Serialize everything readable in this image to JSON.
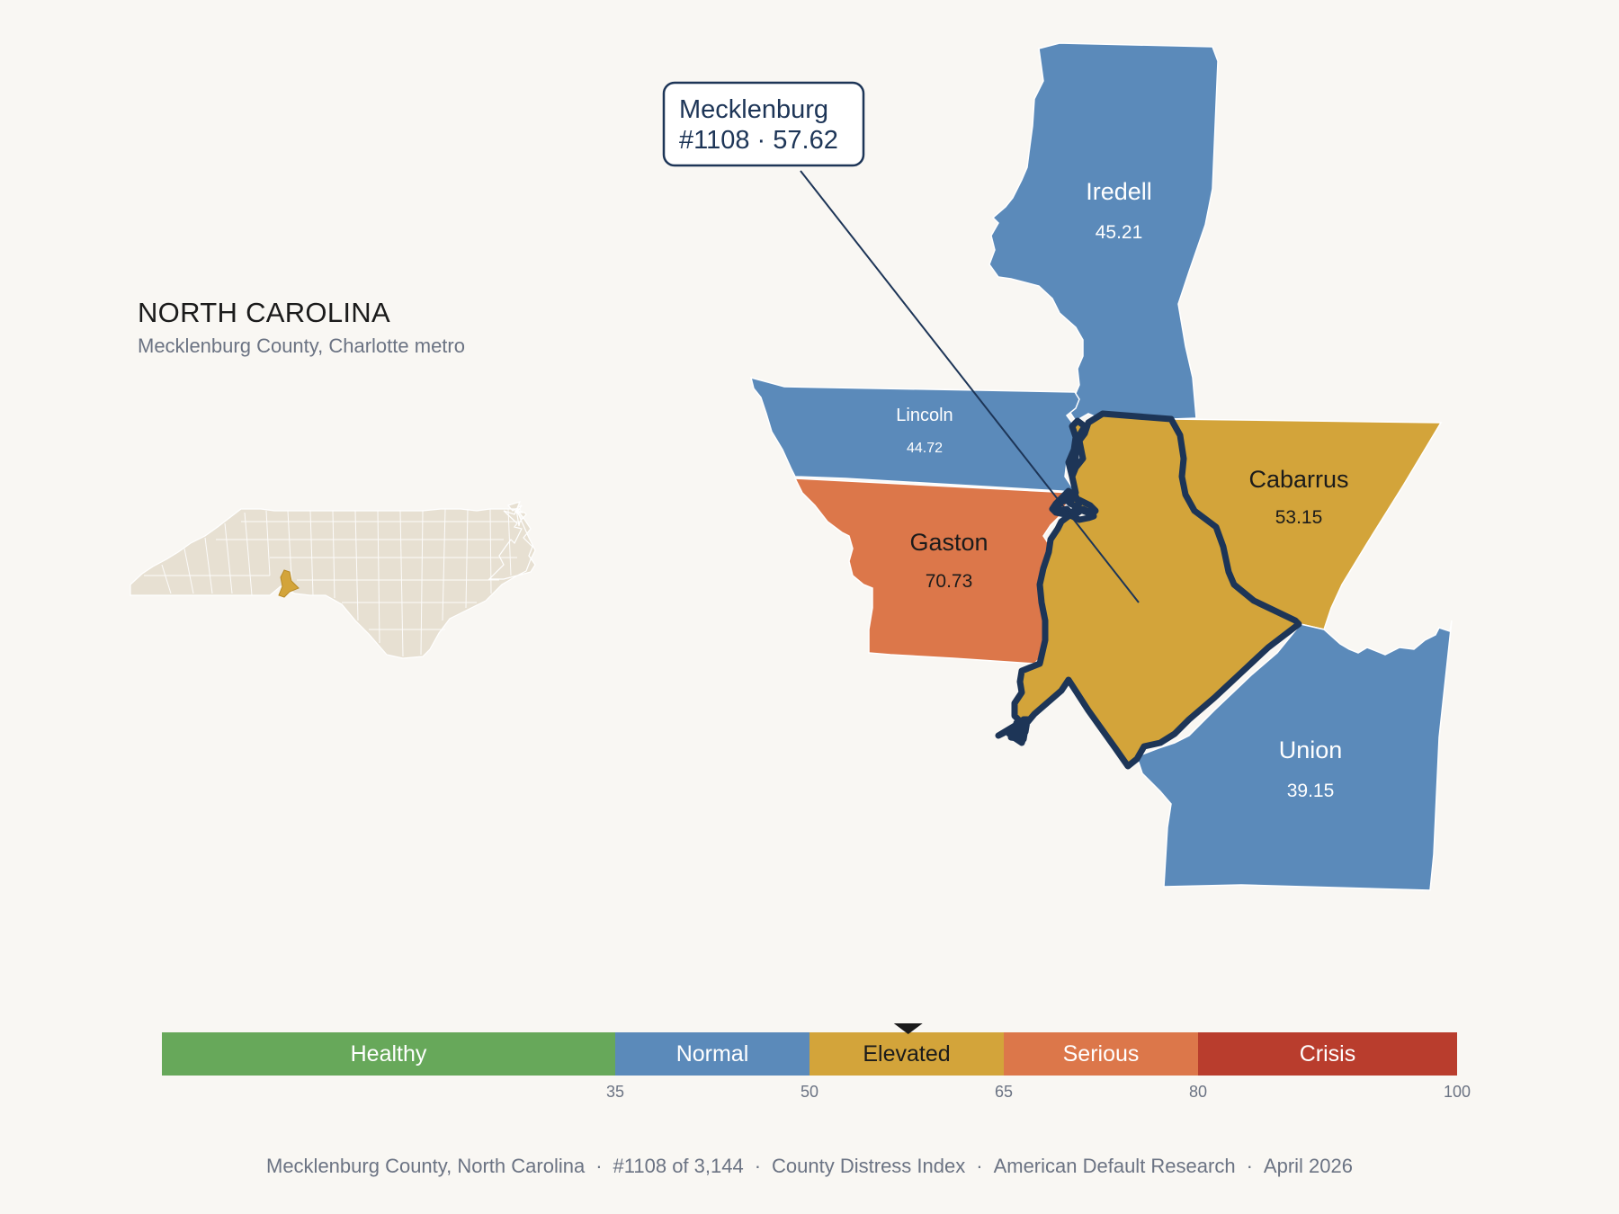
{
  "header": {
    "state": "NORTH CAROLINA",
    "subtitle": "Mecklenburg County, Charlotte metro"
  },
  "callout": {
    "county": "Mecklenburg",
    "rank_value": "#1108 · 57.62"
  },
  "counties": [
    {
      "id": "iredell",
      "name": "Iredell",
      "value": "45.21",
      "category": "normal"
    },
    {
      "id": "lincoln",
      "name": "Lincoln",
      "value": "44.72",
      "category": "normal"
    },
    {
      "id": "gaston",
      "name": "Gaston",
      "value": "70.73",
      "category": "serious"
    },
    {
      "id": "cabarrus",
      "name": "Cabarrus",
      "value": "53.15",
      "category": "elevated"
    },
    {
      "id": "union",
      "name": "Union",
      "value": "39.15",
      "category": "normal"
    },
    {
      "id": "mecklenburg",
      "name": "Mecklenburg",
      "value": "57.62",
      "category": "elevated"
    }
  ],
  "scale": {
    "min": 0,
    "max": 100,
    "marker_value": 57.62,
    "bands": [
      {
        "label": "Healthy",
        "from": 0,
        "to": 35,
        "color": "#67a85a"
      },
      {
        "label": "Normal",
        "from": 35,
        "to": 50,
        "color": "#5b8aba"
      },
      {
        "label": "Elevated",
        "from": 50,
        "to": 65,
        "color": "#d3a43a"
      },
      {
        "label": "Serious",
        "from": 65,
        "to": 80,
        "color": "#dc774a"
      },
      {
        "label": "Crisis",
        "from": 80,
        "to": 100,
        "color": "#b93d2d"
      }
    ],
    "ticks": [
      "35",
      "50",
      "65",
      "80",
      "100"
    ]
  },
  "colors": {
    "normal": "#5b8aba",
    "elevated": "#d3a43a",
    "serious": "#dc774a",
    "highlight_outline": "#1d3557",
    "state_fill": "#e7e0d2"
  },
  "footer": {
    "county": "Mecklenburg County, North Carolina",
    "rank": "#1108 of 3,144",
    "index": "County Distress Index",
    "source": "American Default Research",
    "date": "April 2026",
    "separator": "·"
  }
}
